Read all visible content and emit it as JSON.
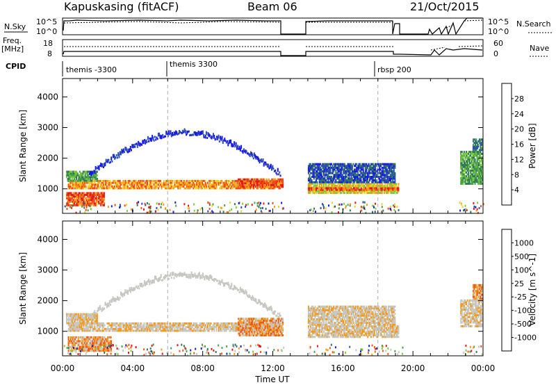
{
  "header": {
    "station": "Kapuskasing (fitACF)",
    "beam": "Beam 06",
    "date": "21/Oct/2015"
  },
  "summary": {
    "nsky_label": "N.Sky",
    "nsky_tick_top": "10^5",
    "nsky_tick_bottom": "10^0",
    "nsearch_label": "N.Search",
    "nsearch_tick_top": "10^5",
    "nsearch_tick_bottom": "10^0",
    "freq_label": "Freq.",
    "freq_unit": "[MHz]",
    "freq_tick_top": "18",
    "freq_tick_bottom": "8",
    "nave_label": "Nave",
    "nave_tick_top": "60",
    "nave_tick_bottom": "0",
    "cpid_label": "CPID",
    "cpid_programs": [
      {
        "name": "themis -3300",
        "start": 0.0,
        "end": 6.0
      },
      {
        "name": "themis 3300",
        "start": 6.0,
        "end": 18.0
      },
      {
        "name": "rbsp 200",
        "start": 18.0,
        "end": 24.0
      }
    ]
  },
  "colors": {
    "power": [
      "#1a1ae6",
      "#2c4fb0",
      "#2f7a5a",
      "#4aa34a",
      "#7ecb3a",
      "#f0d02a",
      "#f59a1a",
      "#ef4a1a",
      "#e21a1a"
    ],
    "velocity": [
      "#e21a1a",
      "#ef5a1a",
      "#f59a1a",
      "#c7c7c2",
      "#c7c7c2",
      "#7ecb3a",
      "#4aa34a",
      "#2f7a5a",
      "#1a2aa6"
    ],
    "gray": "#c7c7c2"
  },
  "chart_data": [
    {
      "type": "heatmap",
      "ylabel": "Slant Range [km]",
      "xlabel": "Time UT",
      "x_ticks": [
        "00:00",
        "04:00",
        "08:00",
        "12:00",
        "16:00",
        "20:00",
        "00:00"
      ],
      "y_ticks": [
        "1000",
        "2000",
        "3000",
        "4000"
      ],
      "xlim": [
        0,
        24
      ],
      "ylim": [
        200,
        4600
      ],
      "colorbar": {
        "label": "Power [dB]",
        "ticks": [
          "4",
          "8",
          "12",
          "16",
          "20",
          "24",
          "28"
        ]
      },
      "dashed_time_markers": [
        6.0,
        18.0
      ],
      "regions": [
        {
          "t0": 0.3,
          "t1": 12.5,
          "r0": 1050,
          "r1": 1350,
          "level": 6
        },
        {
          "t0": 0.2,
          "t1": 2.0,
          "r0": 1300,
          "r1": 1650,
          "level": 3
        },
        {
          "t0": 0.2,
          "t1": 2.4,
          "r0": 500,
          "r1": 950,
          "level": 7
        },
        {
          "t0": 10.0,
          "t1": 12.6,
          "r0": 1100,
          "r1": 1400,
          "level": 7
        },
        {
          "t0": 14.0,
          "t1": 19.2,
          "r0": 900,
          "r1": 1250,
          "level": 5
        },
        {
          "t0": 14.0,
          "t1": 19.2,
          "r0": 1000,
          "r1": 1100,
          "level": 7
        },
        {
          "t0": 14.0,
          "t1": 19.0,
          "r0": 1250,
          "r1": 1900,
          "level": 1
        },
        {
          "t0": 22.7,
          "t1": 24.0,
          "r0": 1200,
          "r1": 2300,
          "level": 3
        },
        {
          "t0": 23.4,
          "t1": 24.0,
          "r0": 2300,
          "r1": 2700,
          "level": 2
        }
      ],
      "arc": {
        "t0": 1.5,
        "t1": 12.4,
        "r_base": 1500,
        "r_peak": 2850,
        "level": 0
      }
    },
    {
      "type": "heatmap",
      "ylabel": "Slant Range [km]",
      "xlabel": "Time UT",
      "x_ticks": [
        "00:00",
        "04:00",
        "08:00",
        "12:00",
        "16:00",
        "20:00",
        "00:00"
      ],
      "y_ticks": [
        "1000",
        "2000",
        "3000",
        "4000"
      ],
      "xlim": [
        0,
        24
      ],
      "ylim": [
        200,
        4600
      ],
      "colorbar": {
        "label": "Velocity [m s^-1]",
        "ticks": [
          "1000",
          "500",
          "100",
          "25",
          "-25",
          "-100",
          "-500",
          "-1000"
        ]
      },
      "dashed_time_markers": [
        6.0,
        18.0
      ],
      "regions": [
        {
          "t0": 0.3,
          "t1": 12.5,
          "r0": 1050,
          "r1": 1350,
          "level": 3
        },
        {
          "t0": 0.2,
          "t1": 2.0,
          "r0": 1300,
          "r1": 1650,
          "level": 3
        },
        {
          "t0": 0.3,
          "t1": 2.8,
          "r0": 400,
          "r1": 900,
          "level": 2
        },
        {
          "t0": 10.0,
          "t1": 12.6,
          "r0": 900,
          "r1": 1500,
          "level": 2
        },
        {
          "t0": 14.0,
          "t1": 19.2,
          "r0": 850,
          "r1": 1250,
          "level": 3
        },
        {
          "t0": 14.0,
          "t1": 19.0,
          "r0": 1250,
          "r1": 1900,
          "level": 3
        },
        {
          "t0": 22.7,
          "t1": 24.0,
          "r0": 1200,
          "r1": 2100,
          "level": 3
        },
        {
          "t0": 23.4,
          "t1": 24.0,
          "r0": 2100,
          "r1": 2600,
          "level": 2
        }
      ],
      "arc": {
        "t0": 1.5,
        "t1": 12.4,
        "r_base": 1500,
        "r_peak": 2850,
        "level": 3
      }
    }
  ]
}
